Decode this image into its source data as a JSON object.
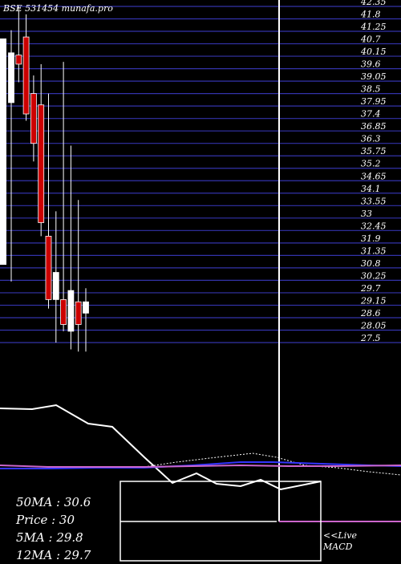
{
  "header": {
    "title": "BSE 531454  munafa.pro"
  },
  "chart_data": {
    "type": "candlestick",
    "y_ticks": [
      "42.35",
      "41.8",
      "41.25",
      "40.7",
      "40.15",
      "39.6",
      "39.05",
      "38.5",
      "37.95",
      "37.4",
      "36.85",
      "36.3",
      "35.75",
      "35.2",
      "34.65",
      "34.1",
      "33.55",
      "33",
      "32.45",
      "31.9",
      "31.35",
      "30.8",
      "30.25",
      "29.7",
      "29.15",
      "28.6",
      "28.05",
      "27.5"
    ],
    "ylim": [
      27.5,
      42.35
    ],
    "candles": [
      {
        "open": 38.1,
        "close": 40.3,
        "high": 41.3,
        "low": 30.2,
        "color": "white"
      },
      {
        "open": 39.8,
        "close": 40.2,
        "high": 42.35,
        "low": 39.0,
        "color": "red"
      },
      {
        "open": 41.0,
        "close": 37.6,
        "high": 42.0,
        "low": 37.3,
        "color": "red"
      },
      {
        "open": 38.5,
        "close": 36.3,
        "high": 39.3,
        "low": 35.5,
        "color": "red"
      },
      {
        "open": 38.0,
        "close": 32.8,
        "high": 39.8,
        "low": 32.2,
        "color": "red"
      },
      {
        "open": 32.2,
        "close": 29.4,
        "high": 38.5,
        "low": 29.0,
        "color": "red"
      },
      {
        "open": 30.6,
        "close": 29.4,
        "high": 33.3,
        "low": 27.5,
        "color": "white"
      },
      {
        "open": 29.4,
        "close": 28.3,
        "high": 39.9,
        "low": 28.0,
        "color": "red"
      },
      {
        "open": 28.0,
        "close": 29.8,
        "high": 36.2,
        "low": 27.2,
        "color": "white"
      },
      {
        "open": 29.3,
        "close": 28.3,
        "high": 33.8,
        "low": 27.1,
        "color": "red"
      },
      {
        "open": 28.8,
        "close": 29.3,
        "high": 29.9,
        "low": 27.1,
        "color": "white"
      }
    ],
    "macd_lines": [
      {
        "color": "#ffffff",
        "points": [
          [
            0,
            509
          ],
          [
            40,
            510
          ],
          [
            70,
            505
          ],
          [
            110,
            528
          ],
          [
            140,
            532
          ],
          [
            180,
            570
          ],
          [
            215,
            602
          ],
          [
            245,
            590
          ],
          [
            270,
            603
          ],
          [
            300,
            606
          ],
          [
            325,
            598
          ],
          [
            350,
            610
          ],
          [
            390,
            602
          ],
          [
            400,
            600
          ]
        ]
      },
      {
        "color": "#ffffff",
        "points": [
          [
            180,
            582
          ],
          [
            220,
            576
          ],
          [
            270,
            570
          ],
          [
            315,
            565
          ],
          [
            345,
            570
          ],
          [
            380,
            580
          ],
          [
            420,
            583
          ],
          [
            460,
            588
          ],
          [
            500,
            592
          ]
        ]
      },
      {
        "color": "#3333ff",
        "points": [
          [
            0,
            584
          ],
          [
            60,
            584
          ],
          [
            120,
            583
          ],
          [
            180,
            583
          ],
          [
            240,
            580
          ],
          [
            300,
            576
          ],
          [
            340,
            576
          ],
          [
            400,
            578
          ],
          [
            460,
            580
          ],
          [
            500,
            581
          ]
        ]
      },
      {
        "color": "#cc66cc",
        "points": [
          [
            0,
            580
          ],
          [
            60,
            582
          ],
          [
            120,
            582
          ],
          [
            180,
            582
          ],
          [
            240,
            581
          ],
          [
            300,
            580
          ],
          [
            360,
            581
          ],
          [
            420,
            581
          ],
          [
            500,
            580
          ]
        ]
      }
    ]
  },
  "indicators": {
    "ma50": "50MA : 30.6",
    "price": "Price  : 30",
    "ma5": "5MA : 29.8",
    "ma12": "12MA : 29.7"
  },
  "live_macd": {
    "line1": "<<Live",
    "line2": "MACD"
  }
}
